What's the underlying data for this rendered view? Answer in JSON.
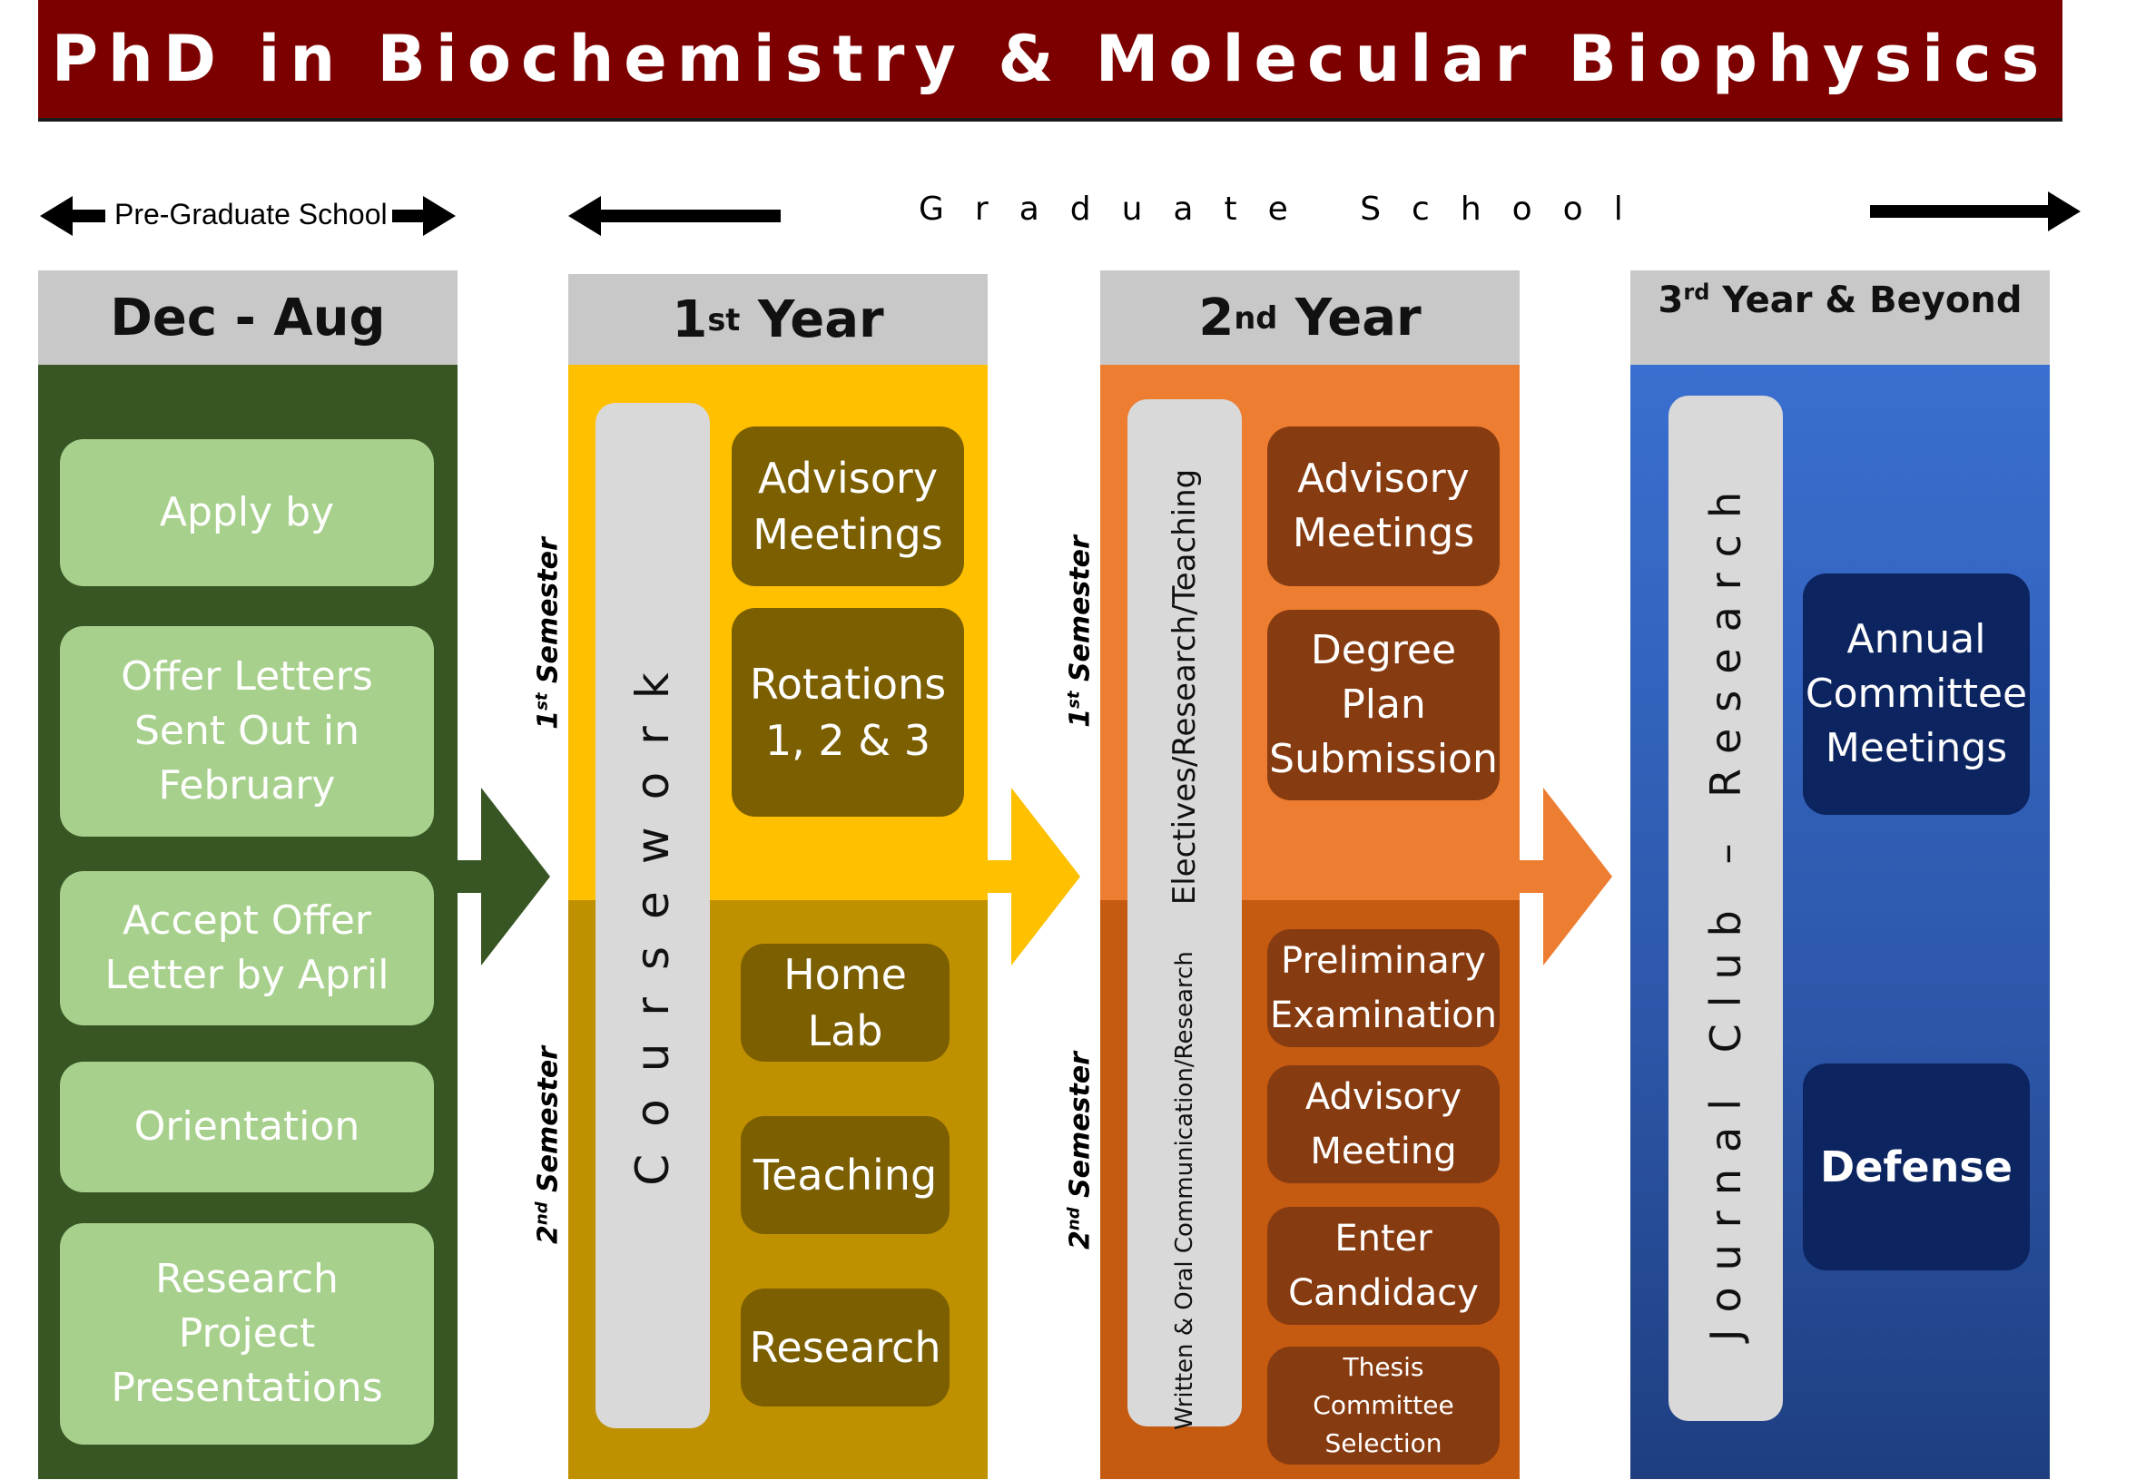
{
  "title": "PhD in Biochemistry & Molecular Biophysics",
  "timeline": {
    "pre_graduate": "Pre-Graduate School",
    "graduate": "Graduate School"
  },
  "colors": {
    "title_bg": "#7d0000",
    "header_gray": "#c8c8c8",
    "pre_grad_green": "#375623",
    "year1_gold": "#ffc000",
    "year2_orange": "#ed7d31",
    "year3_blue": "#2f5fb8"
  },
  "columns": {
    "pre": {
      "header": "Dec - Aug",
      "items": [
        "Apply by",
        "Offer Letters Sent Out in February",
        "Accept Offer Letter by April",
        "Orientation",
        "Research Project Presentations"
      ]
    },
    "year1": {
      "header_num": "1",
      "header_sup": "st",
      "header_rest": " Year",
      "vertical_bar": "Coursework",
      "semester1": {
        "num": "1",
        "sup": "st",
        "rest": " Semester"
      },
      "semester2": {
        "num": "2",
        "sup": "nd",
        "rest": " Semester"
      },
      "sem1_items": [
        "Advisory Meetings",
        "Rotations 1, 2 & 3"
      ],
      "sem2_items": [
        "Home Lab",
        "Teaching",
        "Research"
      ]
    },
    "year2": {
      "header_num": "2",
      "header_sup": "nd",
      "header_rest": " Year",
      "vertical_bar_top": "Electives/Research/Teaching",
      "vertical_bar_bottom": "Written & Oral Communication/Research",
      "semester1": {
        "num": "1",
        "sup": "st",
        "rest": " Semester"
      },
      "semester2": {
        "num": "2",
        "sup": "nd",
        "rest": " Semester"
      },
      "sem1_items": [
        "Advisory Meetings",
        "Degree Plan Submission"
      ],
      "sem2_items": [
        "Preliminary Examination",
        "Advisory Meeting",
        "Enter Candidacy",
        "Thesis Committee Selection"
      ]
    },
    "year3": {
      "header_num": "3",
      "header_sup": "rd",
      "header_rest": " Year & Beyond",
      "vertical_bar": "Journal Club – Research",
      "items": [
        "Annual Committee Meetings",
        "Defense"
      ]
    }
  },
  "icons": {
    "pre_to_year1": "right-arrow-icon",
    "year1_to_year2": "right-arrow-icon",
    "year2_to_year3": "right-arrow-icon"
  }
}
